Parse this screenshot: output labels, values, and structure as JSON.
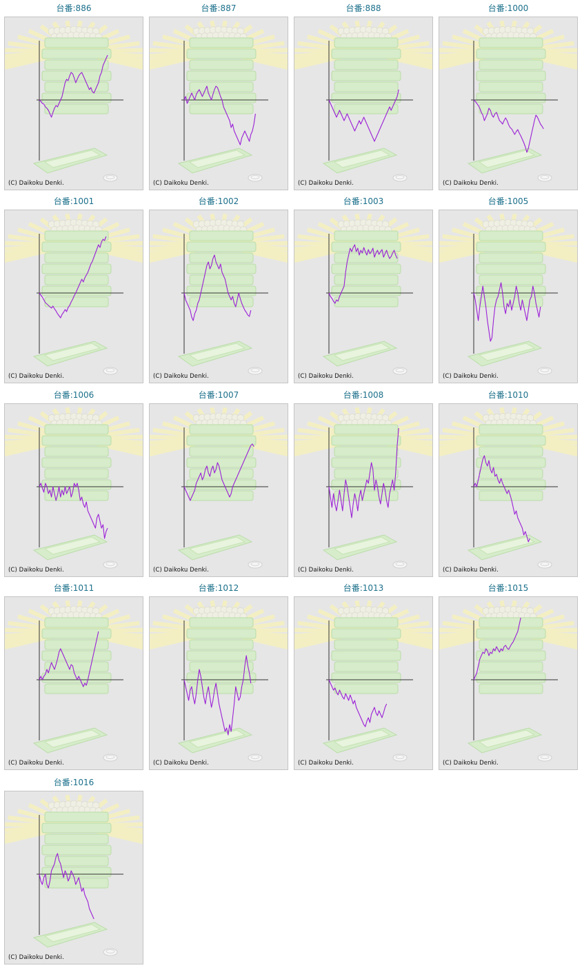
{
  "copyright": "(C) Daikoku Denki.",
  "line_color": "#9b1fd6",
  "title_color": "#1a6f8a",
  "chart_data": [
    {
      "type": "line",
      "title": "台番:886",
      "values": [
        0,
        -2,
        -5,
        -6,
        -10,
        -12,
        -15,
        -20,
        -25,
        -18,
        -12,
        -8,
        -10,
        -5,
        0,
        5,
        15,
        25,
        30,
        28,
        35,
        40,
        38,
        32,
        25,
        30,
        35,
        38,
        40,
        35,
        30,
        25,
        20,
        15,
        18,
        12,
        10,
        15,
        20,
        25,
        35,
        40,
        50,
        55,
        60,
        65
      ]
    },
    {
      "type": "line",
      "title": "台番:887",
      "values": [
        0,
        5,
        -5,
        0,
        5,
        10,
        5,
        0,
        8,
        12,
        15,
        10,
        5,
        10,
        15,
        20,
        10,
        5,
        0,
        8,
        15,
        20,
        18,
        12,
        5,
        0,
        -10,
        -15,
        -20,
        -25,
        -30,
        -40,
        -35,
        -45,
        -50,
        -55,
        -60,
        -65,
        -55,
        -50,
        -45,
        -50,
        -55,
        -60,
        -50,
        -45,
        -35,
        -20
      ]
    },
    {
      "type": "line",
      "title": "台番:888",
      "values": [
        0,
        -5,
        -10,
        -15,
        -20,
        -25,
        -20,
        -15,
        -20,
        -25,
        -30,
        -25,
        -20,
        -25,
        -30,
        -35,
        -40,
        -45,
        -40,
        -35,
        -30,
        -35,
        -30,
        -25,
        -30,
        -35,
        -40,
        -45,
        -50,
        -55,
        -60,
        -55,
        -50,
        -45,
        -40,
        -35,
        -30,
        -25,
        -20,
        -15,
        -10,
        -15,
        -10,
        -5,
        0,
        5,
        15
      ]
    },
    {
      "type": "line",
      "title": "台番:1000",
      "values": [
        0,
        -2,
        -5,
        -8,
        -12,
        -18,
        -22,
        -30,
        -25,
        -20,
        -12,
        -15,
        -22,
        -25,
        -20,
        -18,
        -24,
        -30,
        -32,
        -35,
        -30,
        -26,
        -30,
        -36,
        -40,
        -42,
        -46,
        -50,
        -46,
        -43,
        -48,
        -52,
        -57,
        -62,
        -68,
        -76,
        -70,
        -60,
        -50,
        -40,
        -30,
        -22,
        -25,
        -30,
        -35,
        -38,
        -42
      ]
    },
    {
      "type": "line",
      "title": "台番:1001",
      "values": [
        0,
        -3,
        -6,
        -10,
        -14,
        -16,
        -18,
        -20,
        -22,
        -19,
        -23,
        -26,
        -30,
        -33,
        -36,
        -31,
        -28,
        -24,
        -27,
        -21,
        -18,
        -13,
        -9,
        -4,
        0,
        5,
        10,
        15,
        20,
        16,
        22,
        26,
        30,
        36,
        42,
        46,
        52,
        58,
        64,
        70,
        66,
        74,
        78,
        76,
        82
      ]
    },
    {
      "type": "line",
      "title": "台番:1002",
      "values": [
        0,
        -10,
        -15,
        -20,
        -25,
        -35,
        -40,
        -30,
        -25,
        -15,
        -10,
        0,
        10,
        20,
        30,
        40,
        45,
        35,
        40,
        50,
        55,
        45,
        40,
        35,
        42,
        30,
        25,
        20,
        10,
        0,
        -5,
        -10,
        -5,
        -15,
        -20,
        -10,
        0,
        -8,
        -15,
        -20,
        -25,
        -28,
        -32,
        -34,
        -25
      ]
    },
    {
      "type": "line",
      "title": "台番:1003",
      "values": [
        0,
        -5,
        -8,
        -12,
        -15,
        -10,
        -12,
        -5,
        0,
        5,
        10,
        30,
        45,
        55,
        65,
        60,
        66,
        70,
        60,
        65,
        55,
        62,
        58,
        66,
        60,
        55,
        63,
        57,
        60,
        65,
        52,
        58,
        62,
        56,
        60,
        63,
        52,
        57,
        62,
        55,
        50,
        53,
        58,
        62,
        55,
        50
      ]
    },
    {
      "type": "line",
      "title": "台番:1005",
      "values": [
        0,
        -10,
        -25,
        -40,
        -20,
        -5,
        10,
        -5,
        -20,
        -40,
        -55,
        -70,
        -65,
        -40,
        -20,
        -10,
        -5,
        5,
        15,
        0,
        -20,
        -30,
        -15,
        -20,
        -10,
        -25,
        -15,
        -5,
        10,
        0,
        -15,
        -25,
        -10,
        -20,
        -30,
        -40,
        -25,
        -10,
        -5,
        10,
        0,
        -15,
        -25,
        -35,
        -20
      ]
    },
    {
      "type": "line",
      "title": "台番:1006",
      "values": [
        0,
        5,
        -2,
        -8,
        5,
        0,
        -10,
        -5,
        -15,
        0,
        -10,
        -20,
        -12,
        0,
        -15,
        -5,
        -12,
        0,
        -10,
        -5,
        0,
        -15,
        -8,
        5,
        0,
        5,
        -5,
        -20,
        -15,
        -25,
        -30,
        -22,
        -35,
        -40,
        -45,
        -50,
        -55,
        -60,
        -45,
        -40,
        -50,
        -60,
        -55,
        -75,
        -65,
        -60
      ]
    },
    {
      "type": "line",
      "title": "台番:1007",
      "values": [
        0,
        -5,
        -10,
        -15,
        -20,
        -15,
        -10,
        -5,
        5,
        10,
        15,
        20,
        10,
        15,
        25,
        30,
        20,
        15,
        25,
        30,
        20,
        25,
        35,
        30,
        20,
        10,
        5,
        0,
        -5,
        -10,
        -15,
        -10,
        0,
        5,
        10,
        15,
        20,
        25,
        30,
        35,
        40,
        45,
        50,
        55,
        60,
        62,
        58
      ]
    },
    {
      "type": "line",
      "title": "台番:1008",
      "values": [
        0,
        -15,
        -30,
        -10,
        -25,
        -35,
        -20,
        -5,
        -20,
        -35,
        -10,
        10,
        0,
        -15,
        -30,
        -45,
        -25,
        -10,
        -20,
        -35,
        -15,
        -5,
        -20,
        -10,
        0,
        10,
        5,
        20,
        35,
        25,
        -5,
        10,
        0,
        -15,
        -25,
        -10,
        5,
        -5,
        -20,
        -30,
        -10,
        0,
        10,
        -5,
        20,
        60,
        85
      ]
    },
    {
      "type": "line",
      "title": "台番:1010",
      "values": [
        0,
        5,
        0,
        10,
        20,
        30,
        40,
        45,
        35,
        30,
        38,
        25,
        20,
        28,
        15,
        18,
        10,
        5,
        12,
        5,
        0,
        -5,
        -10,
        -5,
        -12,
        -20,
        -30,
        -40,
        -35,
        -45,
        -50,
        -55,
        -60,
        -70,
        -65,
        -72,
        -80,
        -75
      ]
    },
    {
      "type": "line",
      "title": "台番:1011",
      "values": [
        0,
        5,
        0,
        5,
        8,
        15,
        10,
        18,
        25,
        20,
        15,
        22,
        30,
        40,
        45,
        40,
        35,
        30,
        25,
        20,
        15,
        22,
        20,
        10,
        5,
        0,
        5,
        0,
        -5,
        -10,
        -5,
        -8,
        0,
        10,
        20,
        30,
        40,
        50,
        60,
        70
      ]
    },
    {
      "type": "line",
      "title": "台番:1012",
      "values": [
        0,
        -10,
        -20,
        -30,
        -15,
        -10,
        -25,
        -35,
        -20,
        0,
        15,
        5,
        -10,
        -25,
        -35,
        -20,
        -10,
        -25,
        -40,
        -30,
        -15,
        -5,
        -20,
        -35,
        -45,
        -55,
        -65,
        -75,
        -70,
        -80,
        -65,
        -75,
        -55,
        -35,
        -10,
        -20,
        -30,
        -25,
        -10,
        0,
        20,
        35,
        20,
        10,
        -5
      ]
    },
    {
      "type": "line",
      "title": "台番:1013",
      "values": [
        0,
        -5,
        -10,
        -15,
        -12,
        -18,
        -22,
        -15,
        -20,
        -25,
        -28,
        -20,
        -25,
        -30,
        -22,
        -28,
        -35,
        -30,
        -40,
        -45,
        -50,
        -55,
        -60,
        -65,
        -68,
        -60,
        -55,
        -62,
        -50,
        -45,
        -40,
        -48,
        -52,
        -45,
        -50,
        -55,
        -48,
        -40,
        -35
      ]
    },
    {
      "type": "line",
      "title": "台番:1015",
      "values": [
        0,
        5,
        10,
        20,
        30,
        35,
        40,
        38,
        45,
        42,
        35,
        40,
        38,
        45,
        42,
        48,
        44,
        40,
        45,
        42,
        48,
        50,
        46,
        44,
        48,
        52,
        55,
        60,
        65,
        70,
        80,
        90
      ]
    },
    {
      "type": "line",
      "title": "台番:1016",
      "values": [
        0,
        -10,
        -15,
        -5,
        0,
        -15,
        -20,
        -10,
        5,
        10,
        15,
        25,
        30,
        20,
        15,
        5,
        -5,
        5,
        0,
        -10,
        -5,
        5,
        0,
        -5,
        -15,
        -10,
        -5,
        -15,
        -25,
        -20,
        -30,
        -35,
        -40,
        -50,
        -55,
        -60,
        -65
      ]
    }
  ]
}
